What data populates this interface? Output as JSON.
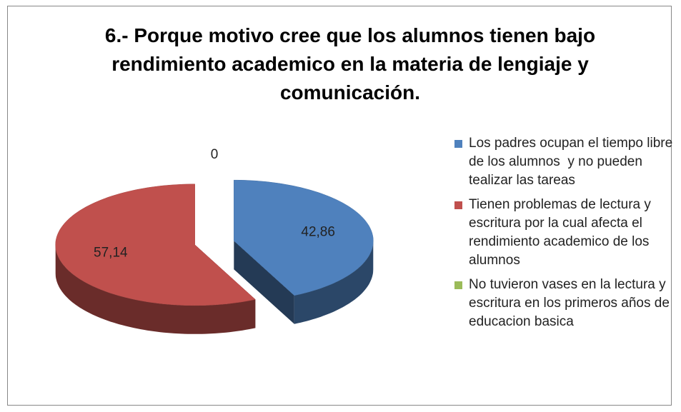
{
  "chart_data": {
    "type": "pie",
    "title": "6.- Porque motivo cree que los alumnos tienen bajo rendimiento academico en la materia de lengiaje y comunicación.",
    "categories": [
      "Los padres ocupan el tiempo libre de los alumnos  y no pueden tealizar las tareas",
      "Tienen problemas de lectura y escritura por la cual afecta el rendimiento academico de los alumnos",
      "No tuvieron vases en la lectura y escritura en los primeros años de educacion basica"
    ],
    "values": [
      42.86,
      57.14,
      0
    ],
    "value_labels": [
      "42,86",
      "57,14",
      "0"
    ],
    "colors": [
      "#4f81bd",
      "#c0504d",
      "#9bbb59"
    ],
    "legend": "right"
  }
}
